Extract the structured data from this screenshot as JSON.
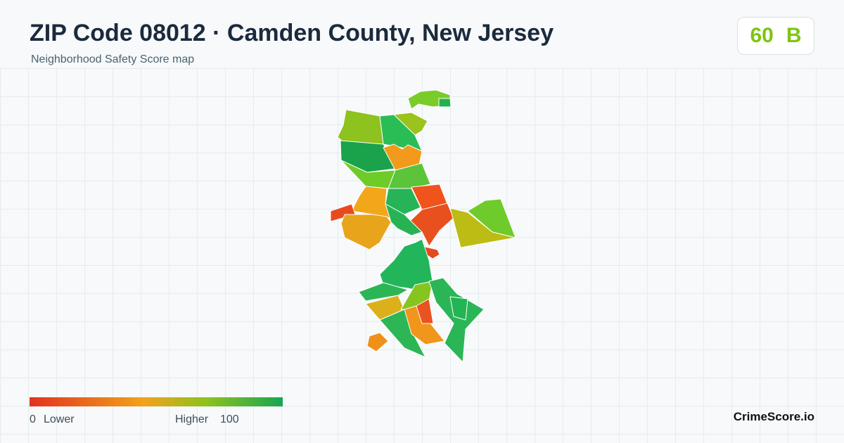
{
  "header": {
    "title": "ZIP Code 08012 · Camden County, New Jersey",
    "subtitle": "Neighborhood Safety Score map"
  },
  "score": {
    "value": "60",
    "grade": "B"
  },
  "legend": {
    "min": "0",
    "min_label": "Lower",
    "max_label": "Higher",
    "max": "100"
  },
  "brand": "CrimeScore.io"
}
